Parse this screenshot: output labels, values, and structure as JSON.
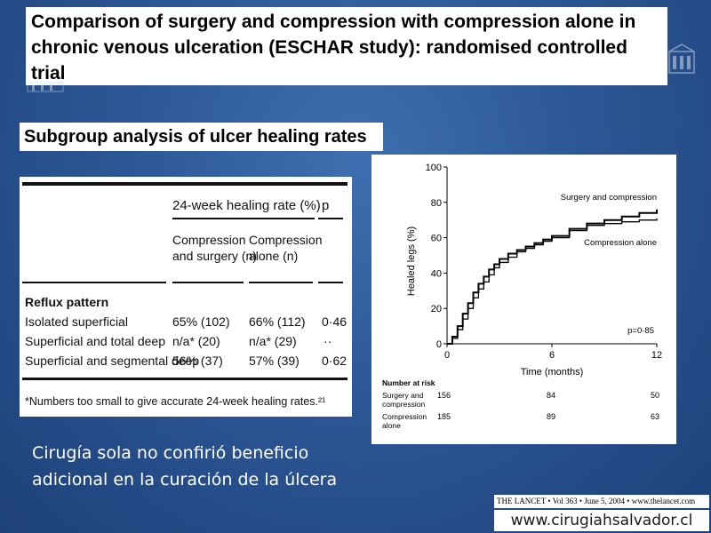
{
  "slide": {
    "title": "Comparison of surgery and compression with compression alone in chronic venous ulceration (ESCHAR study): randomised controlled trial",
    "subtitle": "Subgroup analysis of ulcer healing rates",
    "body_text": "Cirugía sola no confirió beneficio adicional en la curación de la úlcera",
    "citation": "THE LANCET • Vol 363 • June 5, 2004 • www.thelancet.com",
    "website": "www.cirugiahsalvador.cl"
  },
  "table": {
    "group_header": "24-week healing rate (%)",
    "p_header": "p",
    "col1": "Compression and surgery (n)",
    "col1_line1": "Compression",
    "col1_line2": "and surgery (n)",
    "col2": "Compression alone (n)",
    "col2_line1": "Compression",
    "col2_line2": "alone (n)",
    "section": "Reflux pattern",
    "rows": [
      {
        "label": "Isolated superficial",
        "c1": "65% (102)",
        "c2": "66% (112)",
        "p": "0·46"
      },
      {
        "label": "Superficial and total deep",
        "c1": "n/a* (20)",
        "c2": "n/a* (29)",
        "p": "··"
      },
      {
        "label": "Superficial and segmental deep",
        "c1": "56% (37)",
        "c2": "57% (39)",
        "p": "0·62"
      }
    ],
    "footnote": "*Numbers too small to give accurate 24-week healing rates.²¹"
  },
  "chart_data": {
    "type": "line",
    "ylabel": "Healed legs (%)",
    "xlabel": "Time (months)",
    "xlim": [
      0,
      12
    ],
    "ylim": [
      0,
      100
    ],
    "xticks": [
      0,
      6,
      12
    ],
    "yticks": [
      0,
      20,
      40,
      60,
      80,
      100
    ],
    "annotation": "p=0·85",
    "series": [
      {
        "name": "Surgery and compression",
        "x": [
          0,
          0.3,
          0.6,
          0.9,
          1.2,
          1.5,
          1.8,
          2.1,
          2.4,
          2.7,
          3.0,
          3.5,
          4.0,
          4.5,
          5.0,
          5.5,
          6.0,
          7.0,
          8.0,
          9.0,
          10.0,
          11.0,
          12.0
        ],
        "y": [
          0,
          4,
          10,
          17,
          23,
          29,
          34,
          38,
          42,
          45,
          48,
          51,
          53,
          55,
          57,
          59,
          61,
          65,
          68,
          70,
          72,
          74,
          76
        ]
      },
      {
        "name": "Compression alone",
        "x": [
          0,
          0.3,
          0.6,
          0.9,
          1.2,
          1.5,
          1.8,
          2.1,
          2.4,
          2.7,
          3.0,
          3.5,
          4.0,
          4.5,
          5.0,
          5.5,
          6.0,
          7.0,
          8.0,
          9.0,
          10.0,
          11.0,
          12.0
        ],
        "y": [
          0,
          3,
          8,
          14,
          20,
          26,
          31,
          35,
          39,
          43,
          46,
          49,
          52,
          54,
          56,
          58,
          60,
          64,
          67,
          68,
          69,
          70,
          71
        ]
      }
    ],
    "risk_table": {
      "title": "Number at risk",
      "rows": [
        {
          "label": "Surgery and compression",
          "line1": "Surgery and",
          "line2": "compression",
          "values": [
            "156",
            "84",
            "50"
          ]
        },
        {
          "label": "Compression alone",
          "line1": "Compression",
          "line2": "alone",
          "values": [
            "185",
            "89",
            "63"
          ]
        }
      ]
    }
  }
}
